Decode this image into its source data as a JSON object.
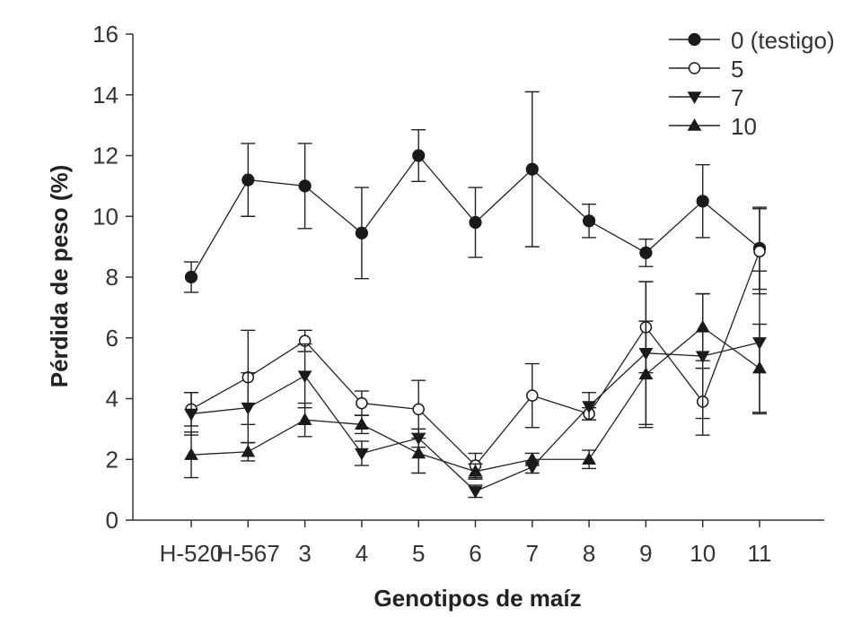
{
  "chart_data": {
    "type": "line",
    "title": "",
    "xlabel": "Genotipos de maíz",
    "ylabel": "Pérdida de peso (%)",
    "categories": [
      "H-520",
      "H-567",
      "3",
      "4",
      "5",
      "6",
      "7",
      "8",
      "9",
      "10",
      "11"
    ],
    "ylim": [
      0,
      16
    ],
    "yticks": [
      0,
      2,
      4,
      6,
      8,
      10,
      12,
      14,
      16
    ],
    "grid": false,
    "legend_position": "top-right",
    "series": [
      {
        "name": "0 (testigo)",
        "marker": "circle-filled",
        "values": [
          8.0,
          11.2,
          11.0,
          9.45,
          12.0,
          9.8,
          11.55,
          9.85,
          8.8,
          10.5,
          8.95
        ],
        "errors": [
          0.5,
          1.2,
          1.4,
          1.5,
          0.85,
          1.15,
          2.55,
          0.55,
          0.45,
          1.2,
          1.35
        ]
      },
      {
        "name": "5",
        "marker": "circle-open",
        "values": [
          3.65,
          4.7,
          5.9,
          3.85,
          3.65,
          1.8,
          4.1,
          3.5,
          6.35,
          3.9,
          8.85
        ],
        "errors": [
          0.55,
          1.55,
          0.35,
          0.4,
          0.95,
          0.4,
          1.05,
          0.2,
          1.5,
          1.1,
          1.4
        ]
      },
      {
        "name": "7",
        "marker": "triangle-down-filled",
        "values": [
          3.5,
          3.7,
          4.75,
          2.2,
          2.7,
          0.95,
          1.75,
          3.75,
          5.5,
          5.4,
          5.85
        ],
        "errors": [
          0.7,
          1.15,
          1.05,
          0.4,
          0.3,
          0.2,
          0.2,
          0.45,
          2.35,
          2.05,
          2.35
        ]
      },
      {
        "name": "10",
        "marker": "triangle-up-filled",
        "values": [
          2.15,
          2.25,
          3.3,
          3.15,
          2.2,
          1.6,
          2.0,
          2.0,
          4.8,
          6.35,
          5.0
        ],
        "errors": [
          0.75,
          0.3,
          0.55,
          0.3,
          0.65,
          0.25,
          0.2,
          0.3,
          1.75,
          1.1,
          1.45
        ]
      }
    ]
  }
}
